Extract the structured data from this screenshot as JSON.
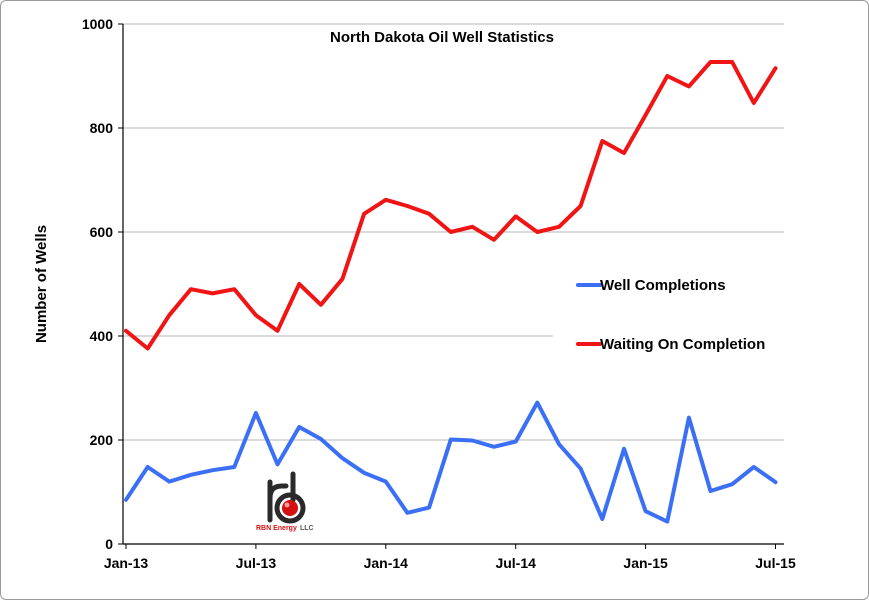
{
  "chart_data": {
    "type": "line",
    "title": "North Dakota Oil Well Statistics",
    "xlabel": "",
    "ylabel": "Number of Wells",
    "ylim": [
      0,
      1000
    ],
    "yticks": [
      0,
      200,
      400,
      600,
      800,
      1000
    ],
    "xtick_labels": [
      "Jan-13",
      "Jul-13",
      "Jan-14",
      "Jul-14",
      "Jan-15",
      "Jul-15"
    ],
    "grid": true,
    "legend_position": "right",
    "x": [
      "2013-01",
      "2013-02",
      "2013-03",
      "2013-04",
      "2013-05",
      "2013-06",
      "2013-07",
      "2013-08",
      "2013-09",
      "2013-10",
      "2013-11",
      "2013-12",
      "2014-01",
      "2014-02",
      "2014-03",
      "2014-04",
      "2014-05",
      "2014-06",
      "2014-07",
      "2014-08",
      "2014-09",
      "2014-10",
      "2014-11",
      "2014-12",
      "2015-01",
      "2015-02",
      "2015-03",
      "2015-04",
      "2015-05",
      "2015-06",
      "2015-07"
    ],
    "series": [
      {
        "name": "Well Completions",
        "color": "#3b6ff5",
        "values": [
          85,
          148,
          120,
          133,
          142,
          148,
          252,
          153,
          225,
          202,
          165,
          137,
          120,
          60,
          70,
          201,
          199,
          187,
          197,
          272,
          192,
          145,
          48,
          183,
          63,
          43,
          243,
          102,
          115,
          148,
          119
        ]
      },
      {
        "name": "Waiting On Completion",
        "color": "#f01414",
        "values": [
          410,
          376,
          440,
          490,
          482,
          490,
          440,
          410,
          500,
          460,
          510,
          635,
          662,
          650,
          635,
          600,
          610,
          585,
          630,
          600,
          610,
          650,
          775,
          752,
          825,
          900,
          880,
          927,
          927,
          848,
          915
        ]
      }
    ]
  },
  "logo": {
    "text": "RBN Energy",
    "suffix": "LLC"
  }
}
